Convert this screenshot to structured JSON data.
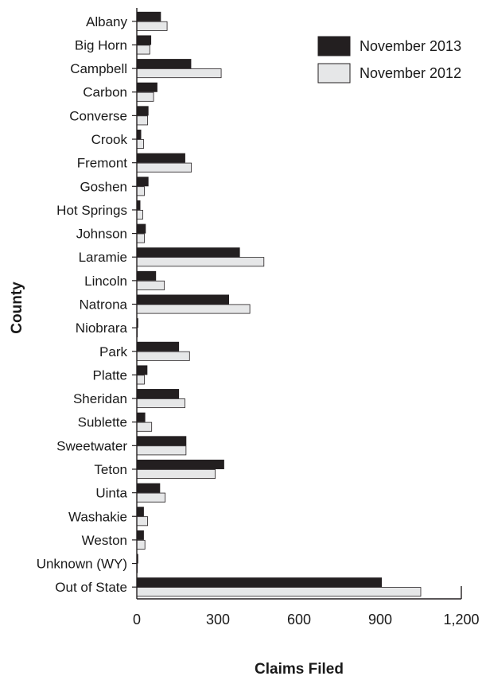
{
  "chart_data": {
    "type": "bar",
    "orientation": "horizontal",
    "title": "",
    "xlabel": "Claims Filed",
    "ylabel": "County",
    "xlim": [
      0,
      1200
    ],
    "xticks": [
      0,
      300,
      600,
      900,
      1200
    ],
    "xtick_labels": [
      "0",
      "300",
      "600",
      "900",
      "1,200"
    ],
    "grid": false,
    "legend_position": "top-right",
    "categories": [
      "Albany",
      "Big Horn",
      "Campbell",
      "Carbon",
      "Converse",
      "Crook",
      "Fremont",
      "Goshen",
      "Hot Springs",
      "Johnson",
      "Laramie",
      "Lincoln",
      "Natrona",
      "Niobrara",
      "Park",
      "Platte",
      "Sheridan",
      "Sublette",
      "Sweetwater",
      "Teton",
      "Uinta",
      "Washakie",
      "Weston",
      "Unknown (WY)",
      "Out of State"
    ],
    "series": [
      {
        "name": "November 2013",
        "color": "#231f20",
        "values": [
          88,
          52,
          200,
          75,
          42,
          15,
          178,
          42,
          12,
          32,
          380,
          70,
          340,
          4,
          155,
          38,
          155,
          30,
          182,
          322,
          85,
          25,
          25,
          4,
          905
        ]
      },
      {
        "name": "November 2012",
        "color": "#e6e7e8",
        "values": [
          112,
          48,
          312,
          62,
          40,
          25,
          202,
          28,
          22,
          28,
          470,
          102,
          418,
          2,
          195,
          28,
          178,
          55,
          182,
          290,
          105,
          40,
          30,
          2,
          1050
        ]
      }
    ]
  }
}
